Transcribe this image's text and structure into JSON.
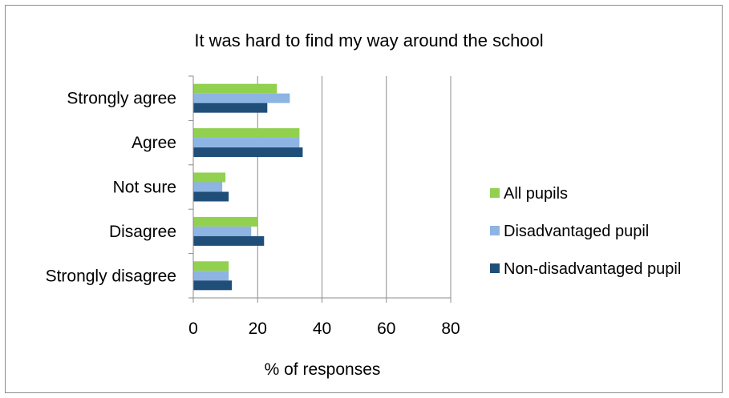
{
  "chart_data": {
    "type": "bar",
    "orientation": "horizontal",
    "title": "It was hard to find my way around the school",
    "xlabel": "% of responses",
    "ylabel": "",
    "categories": [
      "Strongly agree",
      "Agree",
      "Not sure",
      "Disagree",
      "Strongly disagree"
    ],
    "series": [
      {
        "name": "All pupils",
        "color": "#92d050",
        "values": [
          26,
          33,
          10,
          20,
          11
        ]
      },
      {
        "name": "Disadvantaged pupil",
        "color": "#8db4e2",
        "values": [
          30,
          33,
          9,
          18,
          11
        ]
      },
      {
        "name": "Non-disadvantaged pupil",
        "color": "#1f4e79",
        "values": [
          23,
          34,
          11,
          22,
          12
        ]
      }
    ],
    "xlim": [
      0,
      80
    ],
    "xticks": [
      "0",
      "20",
      "40",
      "60",
      "80"
    ],
    "grid": "vertical",
    "legend": "right"
  }
}
